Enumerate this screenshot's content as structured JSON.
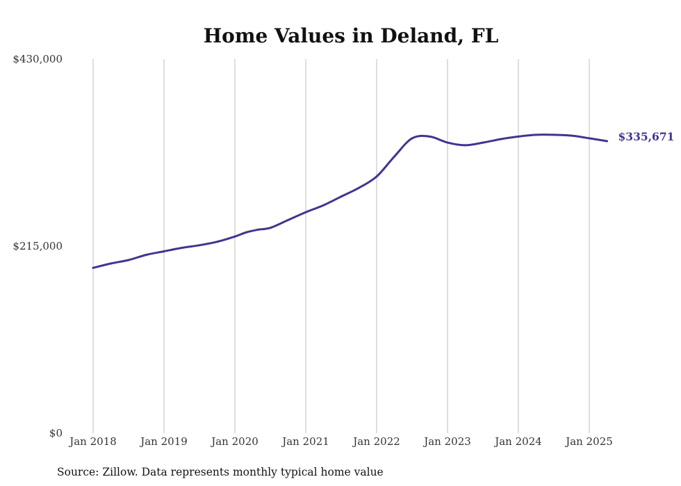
{
  "chart_data": {
    "type": "line",
    "title": "Home Values in Deland, FL",
    "source_note": "Source: Zillow. Data represents monthly typical home value",
    "end_label": "$335,671",
    "line_color": "#3f3590",
    "ylim": [
      0,
      430000
    ],
    "yticks": [
      {
        "value": 430000,
        "label": "$430,000"
      },
      {
        "value": 215000,
        "label": "$215,000"
      },
      {
        "value": 0,
        "label": "$0"
      }
    ],
    "xlim": [
      "2018-01",
      "2025-04"
    ],
    "xticks": [
      {
        "value": "2018-01",
        "label": "Jan 2018"
      },
      {
        "value": "2019-01",
        "label": "Jan 2019"
      },
      {
        "value": "2020-01",
        "label": "Jan 2020"
      },
      {
        "value": "2021-01",
        "label": "Jan 2021"
      },
      {
        "value": "2022-01",
        "label": "Jan 2022"
      },
      {
        "value": "2023-01",
        "label": "Jan 2023"
      },
      {
        "value": "2024-01",
        "label": "Jan 2024"
      },
      {
        "value": "2025-01",
        "label": "Jan 2025"
      }
    ],
    "grid": "vertical",
    "series": [
      {
        "x": [
          "2018-01",
          "2018-04",
          "2018-07",
          "2018-10",
          "2019-01",
          "2019-04",
          "2019-07",
          "2019-10",
          "2020-01",
          "2020-03",
          "2020-05",
          "2020-07",
          "2020-10",
          "2021-01",
          "2021-04",
          "2021-07",
          "2021-10",
          "2022-01",
          "2022-04",
          "2022-07",
          "2022-10",
          "2023-01",
          "2023-04",
          "2023-07",
          "2023-10",
          "2024-01",
          "2024-04",
          "2024-07",
          "2024-10",
          "2025-01",
          "2025-04"
        ],
        "y": [
          190000,
          195000,
          199000,
          205000,
          209000,
          213000,
          216000,
          220000,
          226000,
          231000,
          234000,
          236000,
          245000,
          254000,
          262000,
          272000,
          282000,
          295000,
          318000,
          339000,
          341000,
          334000,
          331000,
          334000,
          338000,
          341000,
          343000,
          343000,
          342000,
          339000,
          335671
        ]
      }
    ]
  }
}
